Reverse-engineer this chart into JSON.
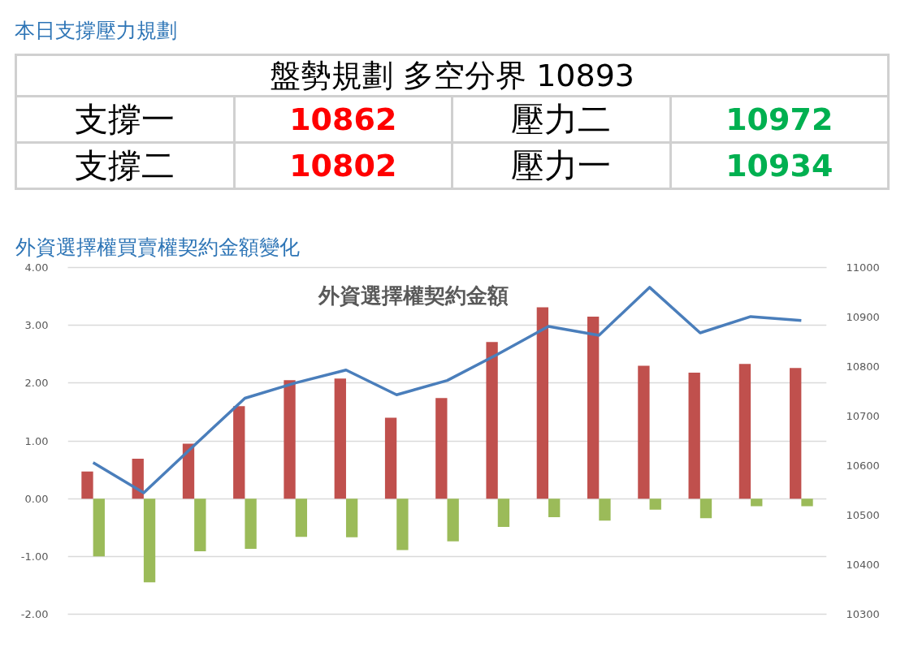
{
  "chart_data": [
    {
      "type": "other",
      "title": "本日支撐壓力規劃",
      "annotations": [
        "盤勢規劃 多空分界 10893",
        "支撐一",
        "10862",
        "壓力二",
        "10972",
        "支撐二",
        "10802",
        "壓力一",
        "10934"
      ]
    },
    {
      "type": "bar",
      "title": "外資選擇權買賣權契約金額變化",
      "subtitle": "外資選擇權契約金額",
      "categories": [
        null,
        null,
        null,
        null,
        null,
        null,
        null,
        null,
        null,
        null,
        null,
        null,
        null,
        null,
        null
      ],
      "series": [
        {
          "type": "bar",
          "color": "#c0504d",
          "values": [
            0.47,
            0.69,
            0.95,
            1.6,
            2.05,
            2.08,
            1.4,
            1.74,
            2.71,
            3.31,
            3.15,
            2.3,
            2.18,
            2.33,
            2.26
          ]
        },
        {
          "type": "bar",
          "color": "#9bbb59",
          "values": [
            -1.0,
            -1.45,
            -0.91,
            -0.87,
            -0.66,
            -0.67,
            -0.89,
            -0.74,
            -0.49,
            -0.32,
            -0.38,
            -0.19,
            -0.34,
            -0.13,
            -0.13
          ]
        },
        {
          "type": "line",
          "axis": "y2",
          "color": "#4a7ebb",
          "values": [
            10606,
            10545,
            10641,
            10736,
            10767,
            10793,
            10743,
            10772,
            10825,
            10881,
            10863,
            10960,
            10868,
            10901,
            10893
          ]
        }
      ],
      "ylim": [
        -2,
        4
      ],
      "yticks": [
        {
          "value": -2,
          "label": "-2.00"
        },
        {
          "value": -1,
          "label": "-1.00"
        },
        {
          "value": 0,
          "label": "0.00"
        },
        {
          "value": 1,
          "label": "1.00"
        },
        {
          "value": 2,
          "label": "2.00"
        },
        {
          "value": 3,
          "label": "3.00"
        },
        {
          "value": 4,
          "label": "4.00"
        }
      ],
      "y2lim": [
        10300,
        11000
      ],
      "y2ticks": [
        10300,
        10400,
        10500,
        10600,
        10700,
        10800,
        10900,
        11000
      ],
      "grid": "y"
    }
  ]
}
